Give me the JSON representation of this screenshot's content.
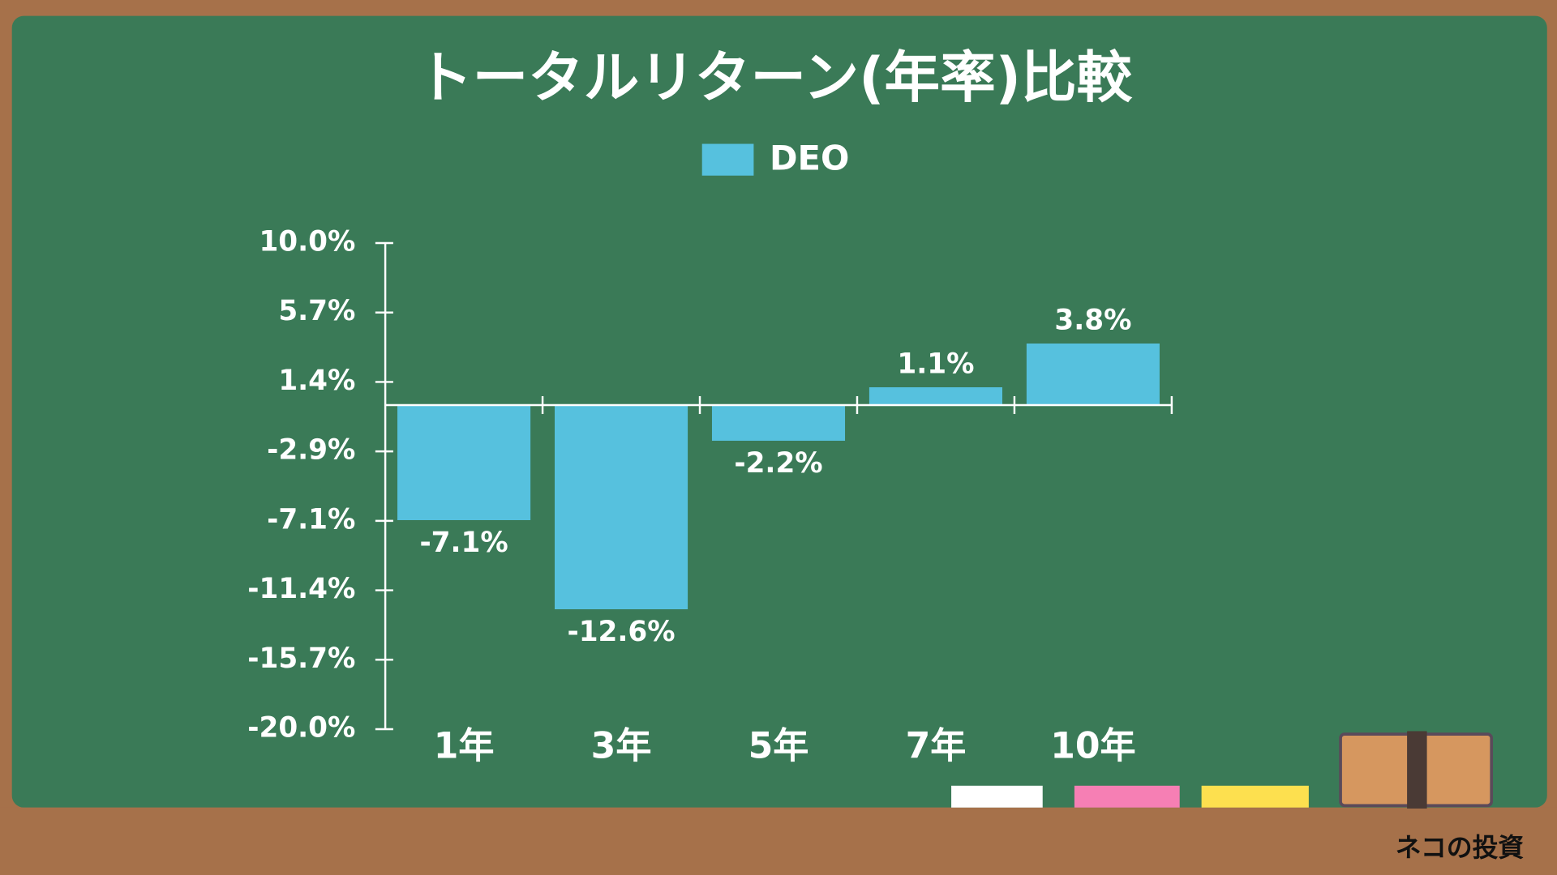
{
  "chart_data": {
    "type": "bar",
    "title": "トータルリターン(年率)比較",
    "categories": [
      "1年",
      "3年",
      "5年",
      "7年",
      "10年"
    ],
    "series": [
      {
        "name": "DEO",
        "color": "#56c1de",
        "values": [
          -7.1,
          -12.6,
          -2.2,
          1.1,
          3.8
        ],
        "value_labels": [
          "-7.1%",
          "-12.6%",
          "-2.2%",
          "1.1%",
          "3.8%"
        ]
      }
    ],
    "ylim": [
      -20,
      10
    ],
    "yticks": [
      {
        "value": 10,
        "label": "10.0%"
      },
      {
        "value": 5.714,
        "label": "5.7%"
      },
      {
        "value": 1.429,
        "label": "1.4%"
      },
      {
        "value": -2.857,
        "label": "-2.9%"
      },
      {
        "value": -7.143,
        "label": "-7.1%"
      },
      {
        "value": -11.429,
        "label": "-11.4%"
      },
      {
        "value": -15.714,
        "label": "-15.7%"
      },
      {
        "value": -20,
        "label": "-20.0%"
      }
    ],
    "grid": false,
    "source": "ネコの投資"
  }
}
